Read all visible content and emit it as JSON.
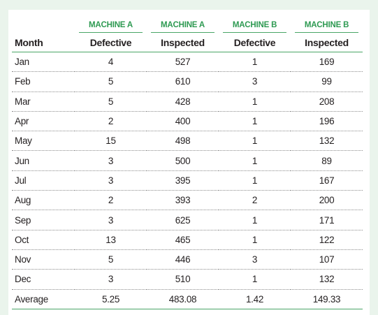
{
  "header": {
    "groups": [
      "MACHINE A",
      "MACHINE A",
      "MACHINE B",
      "MACHINE B"
    ],
    "columns": [
      "Month",
      "Defective",
      "Inspected",
      "Defective",
      "Inspected"
    ]
  },
  "rows": [
    {
      "month": "Jan",
      "a_defective": "4",
      "a_inspected": "527",
      "b_defective": "1",
      "b_inspected": "169"
    },
    {
      "month": "Feb",
      "a_defective": "5",
      "a_inspected": "610",
      "b_defective": "3",
      "b_inspected": "99"
    },
    {
      "month": "Mar",
      "a_defective": "5",
      "a_inspected": "428",
      "b_defective": "1",
      "b_inspected": "208"
    },
    {
      "month": "Apr",
      "a_defective": "2",
      "a_inspected": "400",
      "b_defective": "1",
      "b_inspected": "196"
    },
    {
      "month": "May",
      "a_defective": "15",
      "a_inspected": "498",
      "b_defective": "1",
      "b_inspected": "132"
    },
    {
      "month": "Jun",
      "a_defective": "3",
      "a_inspected": "500",
      "b_defective": "1",
      "b_inspected": "89"
    },
    {
      "month": "Jul",
      "a_defective": "3",
      "a_inspected": "395",
      "b_defective": "1",
      "b_inspected": "167"
    },
    {
      "month": "Aug",
      "a_defective": "2",
      "a_inspected": "393",
      "b_defective": "2",
      "b_inspected": "200"
    },
    {
      "month": "Sep",
      "a_defective": "3",
      "a_inspected": "625",
      "b_defective": "1",
      "b_inspected": "171"
    },
    {
      "month": "Oct",
      "a_defective": "13",
      "a_inspected": "465",
      "b_defective": "1",
      "b_inspected": "122"
    },
    {
      "month": "Nov",
      "a_defective": "5",
      "a_inspected": "446",
      "b_defective": "3",
      "b_inspected": "107"
    },
    {
      "month": "Dec",
      "a_defective": "3",
      "a_inspected": "510",
      "b_defective": "1",
      "b_inspected": "132"
    }
  ],
  "average": {
    "month": "Average",
    "a_defective": "5.25",
    "a_inspected": "483.08",
    "b_defective": "1.42",
    "b_inspected": "149.33"
  },
  "colors": {
    "background": "#eaf4ec",
    "accent": "#2e9a52",
    "rule": "#4aa567",
    "text": "#231f20"
  }
}
